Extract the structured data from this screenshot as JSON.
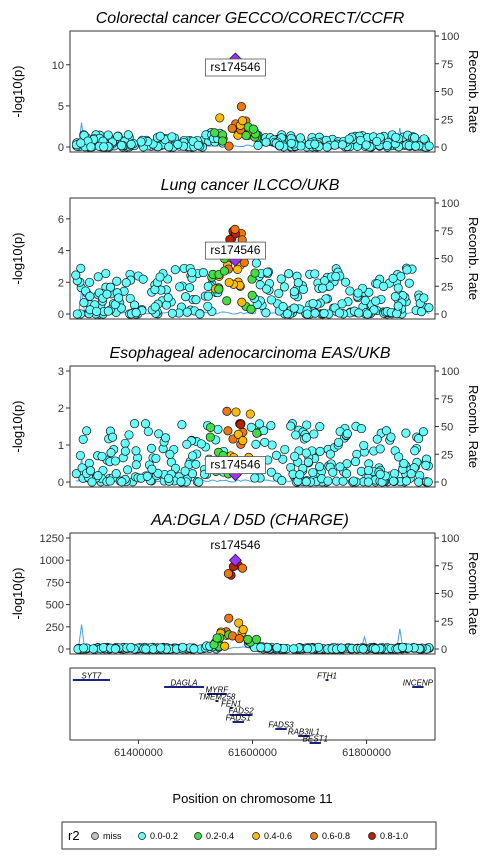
{
  "chart_data": [
    {
      "type": "scatter",
      "title": "Colorectal cancer GECCO/CORECT/CCFR",
      "ylabel": "-log10(p)",
      "y2label": "Recomb. Rate",
      "ylim": [
        0,
        13.5
      ],
      "yticks": [
        0,
        5,
        10
      ],
      "lead_snp": {
        "label": "rs174546",
        "x": 61570000,
        "y": 10.7
      },
      "peak": {
        "center": 61570000,
        "width": 20000,
        "max": 10.7
      },
      "base_max": 1.5,
      "seed": 11
    },
    {
      "type": "scatter",
      "title": "Lung cancer ILCCO/UKB",
      "ylabel": "-log10(p)",
      "y2label": "Recomb. Rate",
      "ylim": [
        0,
        7
      ],
      "yticks": [
        0,
        2,
        4,
        6
      ],
      "lead_snp": {
        "label": "rs174546",
        "x": 61570000,
        "y": 3.4
      },
      "peak": {
        "center": 61570000,
        "width": 20000,
        "max": 5.5
      },
      "base_max": 2.9,
      "seed": 23
    },
    {
      "type": "scatter",
      "title": "Esophageal adenocarcinoma EAS/UKB",
      "ylabel": "-log10(p)",
      "y2label": "Recomb. Rate",
      "ylim": [
        0,
        3
      ],
      "yticks": [
        0,
        1,
        2,
        3
      ],
      "lead_snp": {
        "label": "rs174546",
        "x": 61570000,
        "y": 0.2
      },
      "peak": {
        "center": 61570000,
        "width": 20000,
        "max": 1.8
      },
      "base_max": 1.6,
      "seed": 37
    },
    {
      "type": "scatter",
      "title": "AA:DGLA / D5D (CHARGE)",
      "ylabel": "-log10(p)",
      "y2label": "Recomb. Rate",
      "ylim": [
        0,
        1250
      ],
      "yticks": [
        0,
        250,
        500,
        750,
        1000,
        1250
      ],
      "lead_snp": {
        "label": "rs174546",
        "x": 61570000,
        "y": 1000
      },
      "peak": {
        "center": 61570000,
        "width": 20000,
        "max": 1000
      },
      "base_max": 20,
      "seed": 53
    }
  ],
  "recomb_axis": {
    "ylim": [
      0,
      100
    ],
    "ticks": [
      0,
      25,
      50,
      75,
      100
    ]
  },
  "x_axis": {
    "label": "Position on chromosome 11",
    "range": [
      61280000,
      61920000
    ],
    "ticks": [
      61400000,
      61600000,
      61800000
    ]
  },
  "genes": [
    {
      "name": "SYT7",
      "start": 61285000,
      "end": 61350000,
      "row": 0
    },
    {
      "name": "FTH1",
      "start": 61728000,
      "end": 61732000,
      "row": 0
    },
    {
      "name": "INCENP",
      "start": 61880000,
      "end": 61900000,
      "row": 1
    },
    {
      "name": "DAGLA",
      "start": 61445000,
      "end": 61515000,
      "row": 1
    },
    {
      "name": "MYRF",
      "start": 61520000,
      "end": 61555000,
      "row": 2
    },
    {
      "name": "TMEM258",
      "start": 61535000,
      "end": 61540000,
      "row": 3
    },
    {
      "name": "FEN1",
      "start": 61560000,
      "end": 61565000,
      "row": 4
    },
    {
      "name": "FADS2",
      "start": 61560000,
      "end": 61600000,
      "row": 5
    },
    {
      "name": "FADS1",
      "start": 61565000,
      "end": 61585000,
      "row": 6
    },
    {
      "name": "FADS3",
      "start": 61640000,
      "end": 61660000,
      "row": 7
    },
    {
      "name": "RAB3IL1",
      "start": 61680000,
      "end": 61700000,
      "row": 8
    },
    {
      "name": "BEST1",
      "start": 61700000,
      "end": 61720000,
      "row": 9
    }
  ],
  "legend": {
    "title": "r2",
    "entries": [
      {
        "label": "miss",
        "color": "#c0c0c0"
      },
      {
        "label": "0.0-0.2",
        "color": "#66ffff"
      },
      {
        "label": "0.2-0.4",
        "color": "#44dd44"
      },
      {
        "label": "0.4-0.6",
        "color": "#ffbb00"
      },
      {
        "label": "0.6-0.8",
        "color": "#ee7711"
      },
      {
        "label": "0.8-1.0",
        "color": "#bb2200"
      }
    ]
  },
  "colors": {
    "lead": "#9933ff",
    "recomb_line": "#4aa0e8",
    "gene_bar": "#1a237e"
  }
}
